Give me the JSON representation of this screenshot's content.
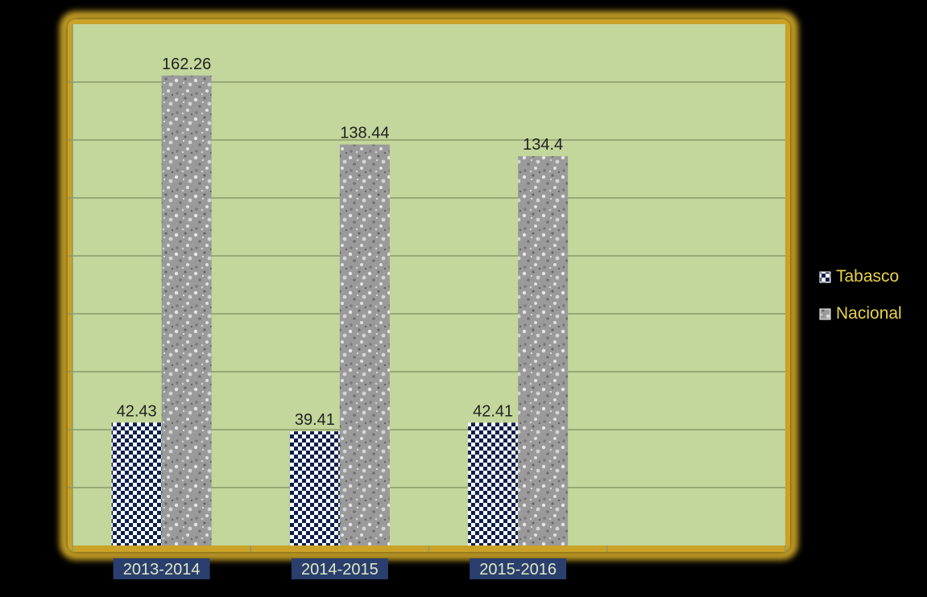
{
  "colors": {
    "background": "#000000",
    "plot_area": "#c3d69b",
    "frame_glow": "#c9a227",
    "gridline": "#8a9a6a",
    "category_label_text": "#dde8c8",
    "category_label_bg": "#2b3f6e",
    "legend_text": "#e8d24a",
    "value_label": "#222222",
    "tabasco_checker_dark": "#0d1f4d",
    "tabasco_checker_light": "#ffffff",
    "nacional_base": "#9a9a9a"
  },
  "legend": {
    "position": "right",
    "items": [
      {
        "label": "Tabasco",
        "icon": "checker-swatch-icon"
      },
      {
        "label": "Nacional",
        "icon": "granite-swatch-icon"
      }
    ]
  },
  "chart_data": {
    "type": "bar",
    "categories": [
      "2013-2014",
      "2014-2015",
      "2015-2016"
    ],
    "series": [
      {
        "name": "Tabasco",
        "values": [
          42.43,
          39.41,
          42.41
        ],
        "labels": [
          "42.43",
          "39.41",
          "42.41"
        ]
      },
      {
        "name": "Nacional",
        "values": [
          162.26,
          138.44,
          134.4
        ],
        "labels": [
          "162.26",
          "138.44",
          "134.4"
        ]
      }
    ],
    "title": "",
    "xlabel": "",
    "ylabel": "",
    "ylim": [
      0,
      180
    ],
    "y_tick_step": 20,
    "y_tick_labels_shown": false,
    "grid": true,
    "empty_category_slots": 1
  }
}
